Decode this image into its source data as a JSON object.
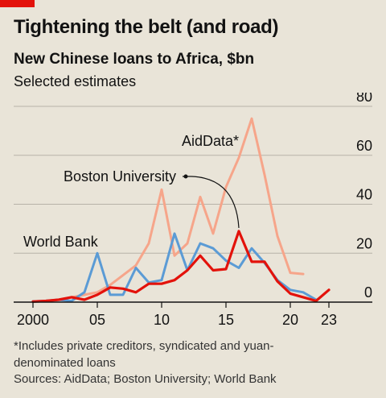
{
  "header": {
    "title": "Tightening the belt (and road)",
    "subtitle": "New Chinese loans to Africa, $bn",
    "subsubtitle": "Selected estimates"
  },
  "footer": {
    "footnote": "*Includes private creditors, syndicated and yuan-denominated loans",
    "source": "Sources: AidData; Boston University; World Bank"
  },
  "chart_data": {
    "type": "line",
    "title": "",
    "xlabel": "",
    "ylabel": "",
    "xlim": [
      2000,
      2023
    ],
    "ylim": [
      0,
      80
    ],
    "x_ticks": [
      2000,
      2005,
      2010,
      2015,
      2020,
      2023
    ],
    "x_tick_labels": [
      "2000",
      "05",
      "10",
      "15",
      "20",
      "23"
    ],
    "y_ticks": [
      0,
      20,
      40,
      60,
      80
    ],
    "y_tick_labels": [
      "0",
      "20",
      "40",
      "60",
      "80"
    ],
    "grid": "horizontal",
    "series": [
      {
        "name": "AidData*",
        "color": "#f6a58a",
        "x": [
          2000,
          2001,
          2002,
          2003,
          2004,
          2005,
          2006,
          2007,
          2008,
          2009,
          2010,
          2011,
          2012,
          2013,
          2014,
          2015,
          2016,
          2017,
          2018,
          2019,
          2020,
          2021
        ],
        "values": [
          0.3,
          0.5,
          1,
          2,
          3,
          4,
          7,
          11,
          15,
          24,
          46,
          19,
          24,
          43,
          28,
          47,
          59,
          75,
          52,
          27,
          12,
          11.5
        ]
      },
      {
        "name": "World Bank",
        "color": "#5b9bd5",
        "x": [
          2000,
          2001,
          2002,
          2003,
          2004,
          2005,
          2006,
          2007,
          2008,
          2009,
          2010,
          2011,
          2012,
          2013,
          2014,
          2015,
          2016,
          2017,
          2018,
          2019,
          2020,
          2021,
          2022
        ],
        "values": [
          0.3,
          0.5,
          1,
          0.5,
          4,
          20,
          3,
          3,
          14,
          8,
          9,
          28,
          13,
          24,
          22,
          17,
          14,
          22,
          16,
          9,
          5,
          4,
          1
        ]
      },
      {
        "name": "Boston University",
        "color": "#e3120b",
        "x": [
          2000,
          2001,
          2002,
          2003,
          2004,
          2005,
          2006,
          2007,
          2008,
          2009,
          2010,
          2011,
          2012,
          2013,
          2014,
          2015,
          2016,
          2017,
          2018,
          2019,
          2020,
          2021,
          2022,
          2023
        ],
        "values": [
          0.2,
          0.5,
          1,
          2,
          1,
          3,
          6,
          5.5,
          4,
          7.5,
          7.5,
          9,
          13,
          19,
          13,
          13.5,
          29,
          16.5,
          16.5,
          8.5,
          3.5,
          2,
          0.5,
          5
        ]
      }
    ],
    "annotations": [
      {
        "text": "AidData*",
        "series": "AidData*"
      },
      {
        "text": "Boston University",
        "series": "Boston University",
        "pointer": {
          "x": 2016,
          "y": 29
        }
      },
      {
        "text": "World Bank",
        "series": "World Bank"
      }
    ]
  }
}
